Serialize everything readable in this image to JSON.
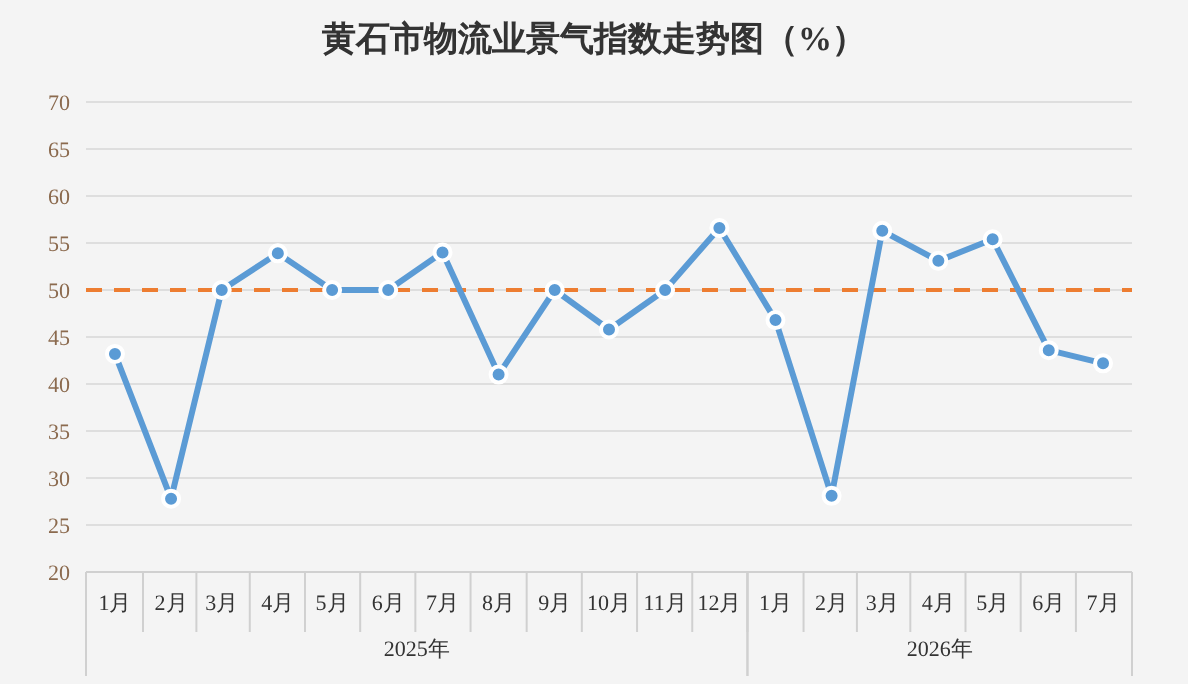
{
  "chart_data": {
    "type": "line",
    "title": "黄石市物流业景气指数走势图（%）",
    "x": [
      "2025-01",
      "2025-02",
      "2025-03",
      "2025-04",
      "2025-05",
      "2025-06",
      "2025-07",
      "2025-08",
      "2025-09",
      "2025-10",
      "2025-11",
      "2025-12",
      "2026-01",
      "2026-02",
      "2026-03",
      "2026-04",
      "2026-05",
      "2026-06",
      "2026-07"
    ],
    "xlim": [
      "2024-12-16",
      "2026-07-17"
    ],
    "xticks": [
      {
        "value": "2025-01",
        "label": "1月"
      },
      {
        "value": "2025-02",
        "label": "2月"
      },
      {
        "value": "2025-03",
        "label": "3月"
      },
      {
        "value": "2025-04",
        "label": "4月"
      },
      {
        "value": "2025-05",
        "label": "5月"
      },
      {
        "value": "2025-06",
        "label": "6月"
      },
      {
        "value": "2025-07",
        "label": "7月"
      },
      {
        "value": "2025-08",
        "label": "8月"
      },
      {
        "value": "2025-09",
        "label": "9月"
      },
      {
        "value": "2025-10",
        "label": "10月"
      },
      {
        "value": "2025-11",
        "label": "11月"
      },
      {
        "value": "2025-12",
        "label": "12月"
      },
      {
        "value": "2026-01",
        "label": "1月"
      },
      {
        "value": "2026-02",
        "label": "2月"
      },
      {
        "value": "2026-03",
        "label": "3月"
      },
      {
        "value": "2026-04",
        "label": "4月"
      },
      {
        "value": "2026-05",
        "label": "5月"
      },
      {
        "value": "2026-06",
        "label": "6月"
      },
      {
        "value": "2026-07",
        "label": "7月"
      }
    ],
    "series": [
      {
        "color": "#5b9bd5",
        "values": [
          43.2,
          27.8,
          50,
          53.9,
          50,
          50,
          54,
          41,
          50,
          45.8,
          50,
          56.6,
          46.8,
          28.1,
          56.3,
          53.1,
          55.4,
          43.6,
          42.2
        ]
      }
    ],
    "ylim": [
      20,
      70
    ],
    "yticks": [
      20,
      25,
      30,
      35,
      40,
      45,
      50,
      55,
      60,
      65,
      70
    ],
    "ref_lines": [
      {
        "axis": "y",
        "value": 50,
        "color": "#ed7d31",
        "line_style": "dashed"
      }
    ],
    "annotations": [
      "2025年",
      "2026年"
    ],
    "grid": "y",
    "marker": "circle",
    "line_style": "solid"
  }
}
